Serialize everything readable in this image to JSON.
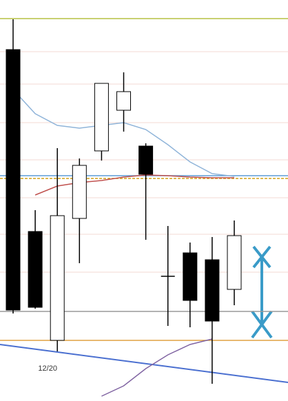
{
  "chart_data": {
    "type": "candlestick",
    "categories": [
      null,
      null,
      "12/20",
      null,
      null,
      null,
      null,
      null,
      null,
      null,
      null
    ],
    "open": [
      510,
      246,
      88,
      265,
      363,
      422,
      370,
      181,
      215,
      205,
      162
    ],
    "high": [
      554,
      277,
      367,
      352,
      461,
      477,
      374,
      254,
      230,
      238,
      262
    ],
    "low": [
      127,
      134,
      72,
      200,
      349,
      391,
      234,
      109,
      107,
      25,
      139
    ],
    "close": [
      132,
      136,
      269,
      342,
      461,
      449,
      329,
      181,
      146,
      116,
      240
    ],
    "up_color": "#ffffff",
    "down_color": "#000000",
    "ylim": [
      0,
      582
    ],
    "series": [
      {
        "color": "#8fb4d9",
        "values": [
          452,
          417,
          400,
          396,
          400,
          404,
          394,
          372,
          347,
          330,
          326
        ]
      },
      {
        "color": "#c0504d",
        "values": [
          null,
          299,
          312,
          317,
          320,
          325,
          328,
          327,
          325,
          324,
          324
        ]
      },
      {
        "color": "#8064a2",
        "values": [
          null,
          null,
          null,
          null,
          7,
          22,
          47,
          67,
          82,
          90,
          null
        ]
      }
    ],
    "levels": [
      {
        "value": 555,
        "color": "#b5c040"
      },
      {
        "value": 327,
        "color": "#5b9bd5"
      },
      {
        "value": 323,
        "color": "#d4a017",
        "dashed": true
      },
      {
        "value": 130,
        "color": "#999999"
      },
      {
        "value": 88,
        "color": "#e0a040"
      }
    ],
    "grid_levels": [
      507,
      460,
      404,
      350,
      295,
      242,
      187
    ],
    "grid_color": "#f3d9d3"
  }
}
